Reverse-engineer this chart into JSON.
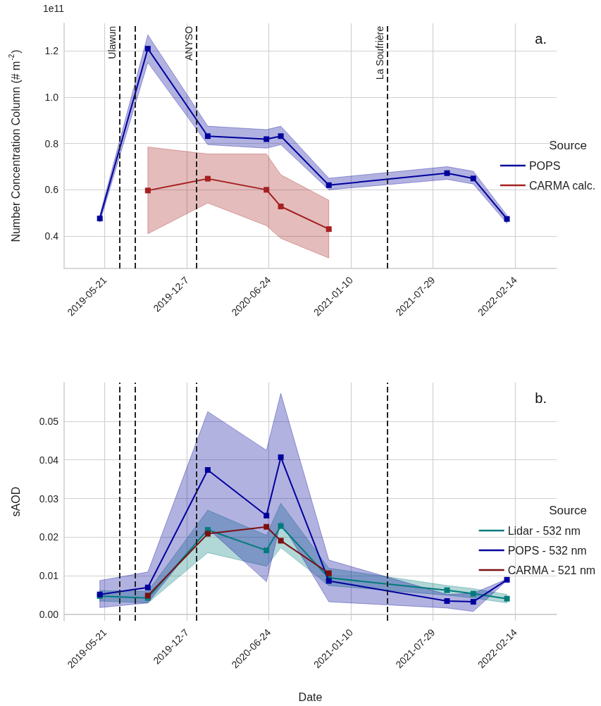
{
  "chart_data": [
    {
      "type": "line",
      "ylabel": "Number Concentration Column (# m$^{-2}$)",
      "legend_title": "Source",
      "annotations": [
        "1e11",
        "a."
      ],
      "x": [
        "2019-05-09",
        "2019-09-03",
        "2020-01-27",
        "2020-06-18",
        "2020-07-23",
        "2020-11-17",
        "2021-09-01",
        "2021-11-04",
        "2022-01-25"
      ],
      "series": [
        {
          "name": "POPS",
          "color": "#00009c",
          "values": [
            0.476,
            1.21,
            0.832,
            0.819,
            0.832,
            0.62,
            0.672,
            0.649,
            0.474
          ],
          "lower": [
            0.46,
            1.15,
            0.795,
            0.78,
            0.795,
            0.6,
            0.645,
            0.625,
            0.455
          ],
          "upper": [
            0.49,
            1.27,
            0.875,
            0.86,
            0.875,
            0.65,
            0.7,
            0.68,
            0.49
          ]
        },
        {
          "name": "CARMA calc.",
          "color": "#a52020",
          "values": [
            null,
            0.597,
            0.648,
            0.6,
            0.528,
            0.43,
            null,
            null,
            null
          ],
          "lower": [
            null,
            0.41,
            0.543,
            0.445,
            0.39,
            0.305,
            null,
            null,
            null
          ],
          "upper": [
            null,
            0.785,
            0.755,
            0.755,
            0.665,
            0.555,
            null,
            null,
            null
          ]
        }
      ],
      "xlim": [
        "2019-02-11",
        "2022-05-26"
      ],
      "xticks": [
        "2019-05-21",
        {
          "value": "2019-12-07",
          "label": "2019-12-7"
        },
        "2020-06-24",
        "2021-01-10",
        "2021-07-29",
        "2022-02-14"
      ],
      "ylim": [
        0.26,
        1.32
      ],
      "yticks": [
        0.4,
        0.6,
        0.8,
        {
          "value": 1,
          "label": "1.0"
        },
        1.2
      ],
      "ref_lines": [
        {
          "axis": "x",
          "value": "2019-06-27",
          "label": "Ulawun",
          "color": "#222222",
          "line_style": "dashed"
        },
        {
          "axis": "x",
          "value": "2019-08-03",
          "label": null,
          "color": "#222222",
          "line_style": "dashed"
        },
        {
          "axis": "x",
          "value": "2019-12-30",
          "label": "ANYSO",
          "color": "#222222",
          "line_style": "dashed"
        },
        {
          "axis": "x",
          "value": "2021-04-09",
          "label": "La Soufrière",
          "color": "#222222",
          "line_style": "dashed"
        }
      ],
      "grid": true,
      "legend": "right",
      "marker": "square",
      "line_style": "solid"
    },
    {
      "type": "line",
      "xlabel": "Date",
      "ylabel": "sAOD",
      "legend_title": "Source",
      "annotations": [
        "b."
      ],
      "x": [
        "2019-05-09",
        "2019-09-03",
        "2020-01-27",
        "2020-06-18",
        "2020-07-23",
        "2020-11-17",
        "2021-09-01",
        "2021-11-04",
        "2022-01-25"
      ],
      "series": [
        {
          "name": "Lidar - 532 nm",
          "color": "#007b7b",
          "values": [
            0.0048,
            0.0043,
            0.0219,
            0.0166,
            0.0229,
            0.0095,
            0.0063,
            0.0054,
            0.0041
          ],
          "lower": [
            0.0035,
            0.003,
            0.016,
            0.0125,
            0.0173,
            0.0075,
            0.005,
            0.0043,
            0.003
          ],
          "upper": [
            0.0062,
            0.006,
            0.027,
            0.0205,
            0.0288,
            0.012,
            0.0075,
            0.0067,
            0.0052
          ]
        },
        {
          "name": "POPS - 532 nm",
          "color": "#00009c",
          "values": [
            0.0052,
            0.007,
            0.0374,
            0.0256,
            0.0407,
            0.0087,
            0.0035,
            0.0033,
            0.009
          ],
          "lower": [
            0.0018,
            0.003,
            0.0223,
            0.0085,
            0.024,
            0.0033,
            0.0017,
            0.0008,
            0.0088
          ],
          "upper": [
            0.0088,
            0.011,
            0.0525,
            0.0425,
            0.0572,
            0.0141,
            0.0052,
            0.0055,
            0.0092
          ]
        },
        {
          "name": "CARMA - 521 nm",
          "color": "#7a1010",
          "values": [
            null,
            0.0049,
            0.0209,
            0.0227,
            0.0191,
            0.0107,
            null,
            null,
            null
          ]
        }
      ],
      "xlim": [
        "2019-02-11",
        "2022-05-26"
      ],
      "xticks": [
        "2019-05-21",
        {
          "value": "2019-12-07",
          "label": "2019-12-7"
        },
        "2020-06-24",
        "2021-01-10",
        "2021-07-29",
        "2022-02-14"
      ],
      "ylim": [
        -0.0016,
        0.06
      ],
      "yticks": [
        {
          "value": 0,
          "label": "0.00"
        },
        0.01,
        0.02,
        0.03,
        0.04,
        0.05
      ],
      "ref_lines": [
        {
          "axis": "x",
          "value": "2019-06-27",
          "label": null,
          "color": "#222222",
          "line_style": "dashed"
        },
        {
          "axis": "x",
          "value": "2019-08-03",
          "label": null,
          "color": "#222222",
          "line_style": "dashed"
        },
        {
          "axis": "x",
          "value": "2019-12-30",
          "label": null,
          "color": "#222222",
          "line_style": "dashed"
        },
        {
          "axis": "x",
          "value": "2021-04-09",
          "label": null,
          "color": "#222222",
          "line_style": "dashed"
        }
      ],
      "grid": true,
      "legend": "right",
      "marker": "square",
      "line_style": "solid"
    }
  ]
}
